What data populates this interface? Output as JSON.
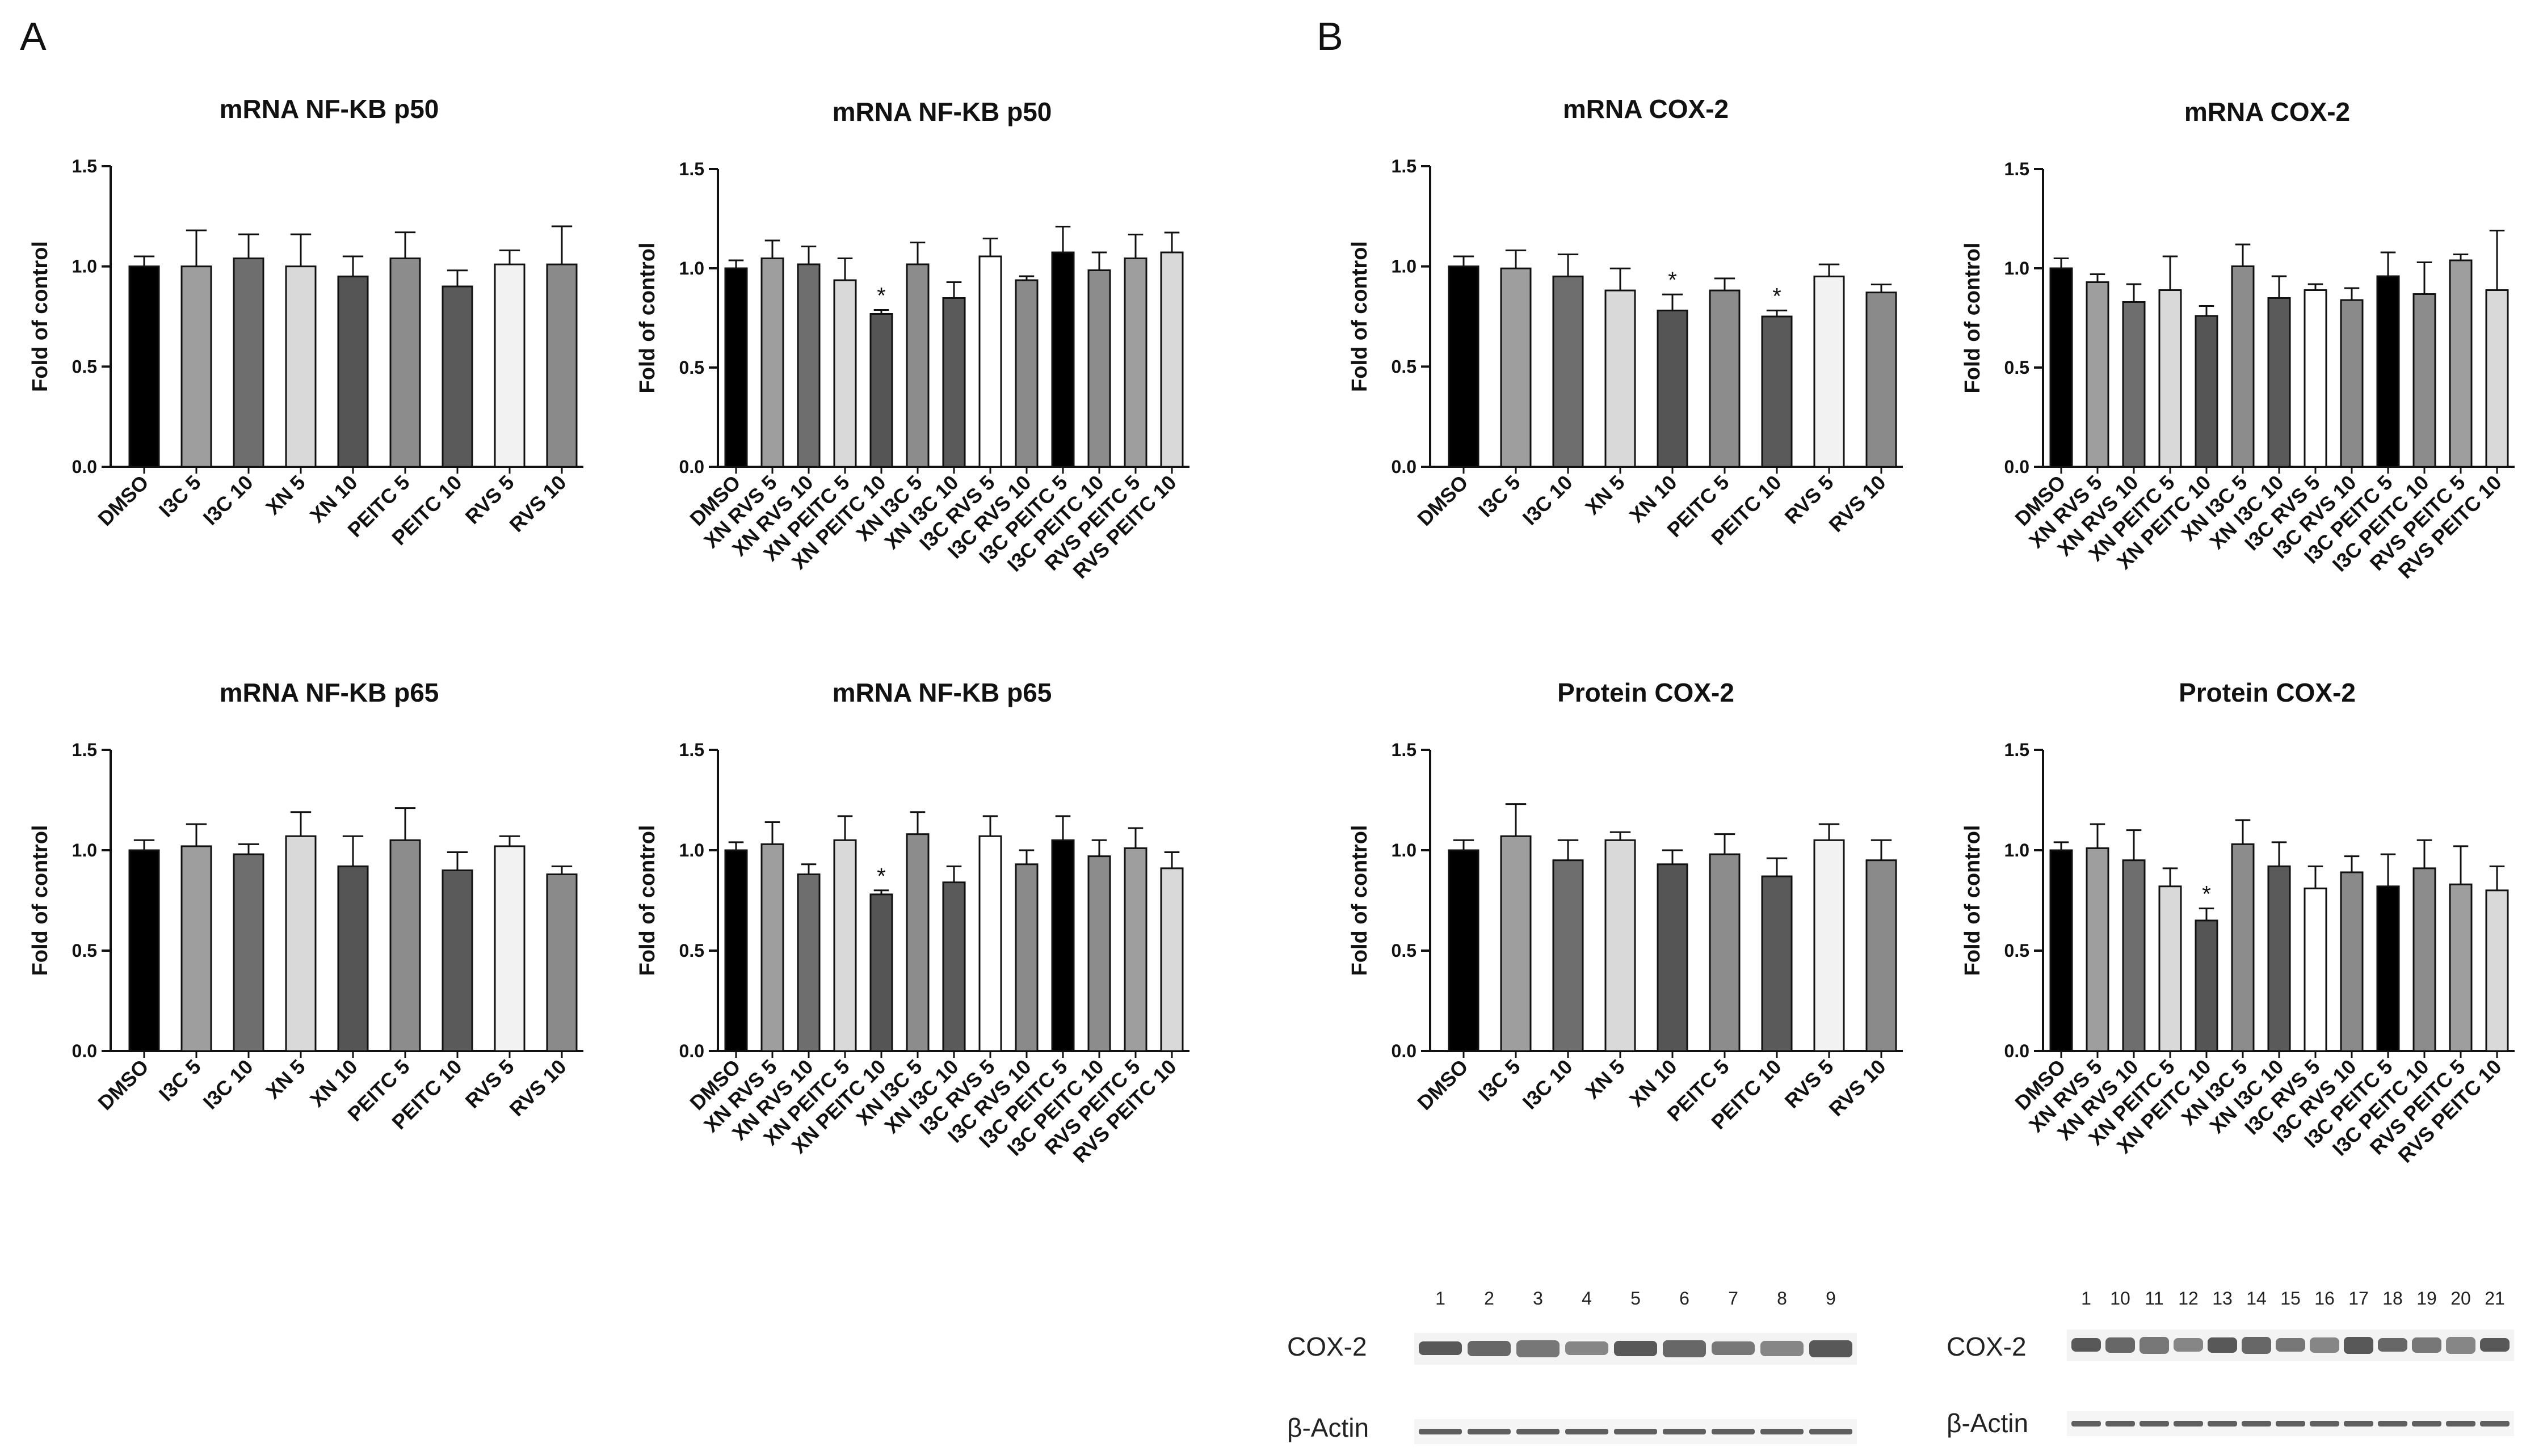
{
  "panel_labels": [
    "A",
    "B"
  ],
  "shared_categories": {
    "single": [
      "DMSO",
      "I3C 5",
      "I3C 10",
      "XN 5",
      "XN 10",
      "PEITC 5",
      "PEITC 10",
      "RVS 5",
      "RVS 10"
    ],
    "combo": [
      "DMSO",
      "XN RVS 5",
      "XN RVS 10",
      "XN PEITC 5",
      "XN PEITC 10",
      "XN I3C 5",
      "XN I3C 10",
      "I3C RVS 5",
      "I3C RVS 10",
      "I3C PEITC 5",
      "I3C PEITC 10",
      "RVS PEITC 5",
      "RVS PEITC 10"
    ]
  },
  "colors": {
    "single": [
      "#000000",
      "#9e9e9e",
      "#6e6e6e",
      "#d9d9d9",
      "#555555",
      "#8c8c8c",
      "#5a5a5a",
      "#f2f2f2",
      "#8a8a8a"
    ],
    "combo": [
      "#000000",
      "#9e9e9e",
      "#6e6e6e",
      "#d9d9d9",
      "#555555",
      "#8c8c8c",
      "#5a5a5a",
      "#ffffff",
      "#8a8a8a",
      "#000000",
      "#8c8c8c",
      "#9e9e9e",
      "#d9d9d9"
    ]
  },
  "chart_data": [
    {
      "type": "bar",
      "title": "mRNA NF-KB p50",
      "ylabel": "Fold of control",
      "ylim": [
        0,
        1.5
      ],
      "yticks": [
        "0.0",
        "0.5",
        "1.0",
        "1.5"
      ],
      "catset": "single",
      "values": [
        1.0,
        1.0,
        1.04,
        1.0,
        0.95,
        1.04,
        0.9,
        1.01,
        1.01
      ],
      "errors": [
        0.05,
        0.18,
        0.12,
        0.16,
        0.1,
        0.13,
        0.08,
        0.07,
        0.19
      ],
      "sig": [
        "",
        "",
        "",
        "",
        "",
        "",
        "",
        "",
        ""
      ]
    },
    {
      "type": "bar",
      "title": "mRNA NF-KB p50",
      "ylabel": "Fold of control",
      "ylim": [
        0,
        1.5
      ],
      "yticks": [
        "0.0",
        "0.5",
        "1.0",
        "1.5"
      ],
      "catset": "combo",
      "values": [
        1.0,
        1.05,
        1.02,
        0.94,
        0.77,
        1.02,
        0.85,
        1.06,
        0.94,
        1.08,
        0.99,
        1.05,
        1.08
      ],
      "errors": [
        0.04,
        0.09,
        0.09,
        0.11,
        0.02,
        0.11,
        0.08,
        0.09,
        0.02,
        0.13,
        0.09,
        0.12,
        0.1
      ],
      "sig": [
        "",
        "",
        "",
        "",
        "*",
        "",
        "",
        "",
        "",
        "",
        "",
        "",
        ""
      ]
    },
    {
      "type": "bar",
      "title": "mRNA COX-2",
      "ylabel": "Fold of control",
      "ylim": [
        0,
        1.5
      ],
      "yticks": [
        "0.0",
        "0.5",
        "1.0",
        "1.5"
      ],
      "catset": "single",
      "values": [
        1.0,
        0.99,
        0.95,
        0.88,
        0.78,
        0.88,
        0.75,
        0.95,
        0.87
      ],
      "errors": [
        0.05,
        0.09,
        0.11,
        0.11,
        0.08,
        0.06,
        0.03,
        0.06,
        0.04
      ],
      "sig": [
        "",
        "",
        "",
        "",
        "*",
        "",
        "*",
        "",
        ""
      ]
    },
    {
      "type": "bar",
      "title": "mRNA COX-2",
      "ylabel": "Fold of control",
      "ylim": [
        0,
        1.5
      ],
      "yticks": [
        "0.0",
        "0.5",
        "1.0",
        "1.5"
      ],
      "catset": "combo",
      "values": [
        1.0,
        0.93,
        0.83,
        0.89,
        0.76,
        1.01,
        0.85,
        0.89,
        0.84,
        0.96,
        0.87,
        1.04,
        0.89
      ],
      "errors": [
        0.05,
        0.04,
        0.09,
        0.17,
        0.05,
        0.11,
        0.11,
        0.03,
        0.06,
        0.12,
        0.16,
        0.03,
        0.3
      ],
      "sig": [
        "",
        "",
        "",
        "",
        "",
        "",
        "",
        "",
        "",
        "",
        "",
        "",
        ""
      ]
    },
    {
      "type": "bar",
      "title": "mRNA NF-KB p65",
      "ylabel": "Fold of control",
      "ylim": [
        0,
        1.5
      ],
      "yticks": [
        "0.0",
        "0.5",
        "1.0",
        "1.5"
      ],
      "catset": "single",
      "values": [
        1.0,
        1.02,
        0.98,
        1.07,
        0.92,
        1.05,
        0.9,
        1.02,
        0.88
      ],
      "errors": [
        0.05,
        0.11,
        0.05,
        0.12,
        0.15,
        0.16,
        0.09,
        0.05,
        0.04
      ],
      "sig": [
        "",
        "",
        "",
        "",
        "",
        "",
        "",
        "",
        ""
      ]
    },
    {
      "type": "bar",
      "title": "mRNA NF-KB p65",
      "ylabel": "Fold of control",
      "ylim": [
        0,
        1.5
      ],
      "yticks": [
        "0.0",
        "0.5",
        "1.0",
        "1.5"
      ],
      "catset": "combo",
      "values": [
        1.0,
        1.03,
        0.88,
        1.05,
        0.78,
        1.08,
        0.84,
        1.07,
        0.93,
        1.05,
        0.97,
        1.01,
        0.91
      ],
      "errors": [
        0.04,
        0.11,
        0.05,
        0.12,
        0.02,
        0.11,
        0.08,
        0.1,
        0.07,
        0.12,
        0.08,
        0.1,
        0.08
      ],
      "sig": [
        "",
        "",
        "",
        "",
        "*",
        "",
        "",
        "",
        "",
        "",
        "",
        "",
        ""
      ]
    },
    {
      "type": "bar",
      "title": "Protein COX-2",
      "ylabel": "Fold of control",
      "ylim": [
        0,
        1.5
      ],
      "yticks": [
        "0.0",
        "0.5",
        "1.0",
        "1.5"
      ],
      "catset": "single",
      "values": [
        1.0,
        1.07,
        0.95,
        1.05,
        0.93,
        0.98,
        0.87,
        1.05,
        0.95
      ],
      "errors": [
        0.05,
        0.16,
        0.1,
        0.04,
        0.07,
        0.1,
        0.09,
        0.08,
        0.1
      ],
      "sig": [
        "",
        "",
        "",
        "",
        "",
        "",
        "",
        "",
        ""
      ]
    },
    {
      "type": "bar",
      "title": "Protein COX-2",
      "ylabel": "Fold of control",
      "ylim": [
        0,
        1.5
      ],
      "yticks": [
        "0.0",
        "0.5",
        "1.0",
        "1.5"
      ],
      "catset": "combo",
      "values": [
        1.0,
        1.01,
        0.95,
        0.82,
        0.65,
        1.03,
        0.92,
        0.81,
        0.89,
        0.82,
        0.91,
        0.83,
        0.8
      ],
      "errors": [
        0.04,
        0.12,
        0.15,
        0.09,
        0.06,
        0.12,
        0.12,
        0.11,
        0.08,
        0.16,
        0.14,
        0.19,
        0.12
      ],
      "sig": [
        "",
        "",
        "",
        "",
        "*",
        "",
        "",
        "",
        "",
        "",
        "",
        "",
        ""
      ]
    }
  ],
  "blots": [
    {
      "lanes": [
        "1",
        "2",
        "3",
        "4",
        "5",
        "6",
        "7",
        "8",
        "9"
      ],
      "labels": [
        "COX-2",
        "β-Actin"
      ]
    },
    {
      "lanes": [
        "1",
        "10",
        "11",
        "12",
        "13",
        "14",
        "15",
        "16",
        "17",
        "18",
        "19",
        "20",
        "21"
      ],
      "labels": [
        "COX-2",
        "β-Actin"
      ]
    }
  ]
}
